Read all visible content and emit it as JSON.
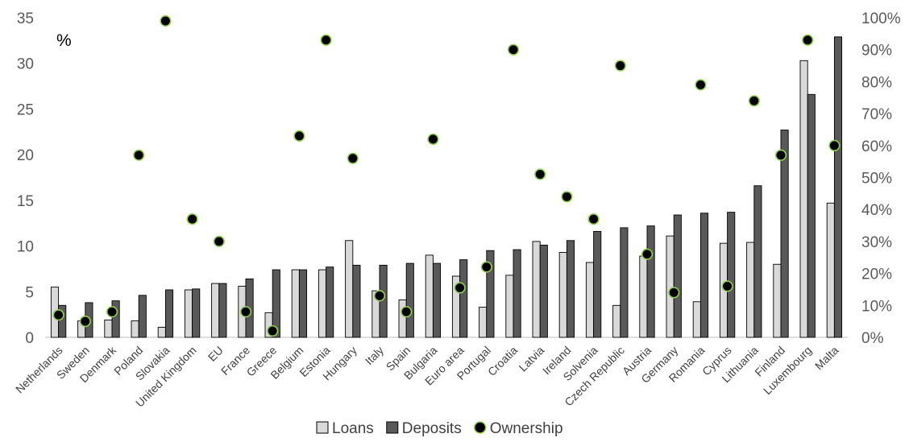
{
  "chart_data": {
    "type": "bar",
    "unit_label": "%",
    "categories": [
      "Netherlands",
      "Sweden",
      "Denmark",
      "Poland",
      "Slovakia",
      "United Kingdom",
      "EU",
      "France",
      "Greece",
      "Belgium",
      "Estonia",
      "Hungary",
      "Italy",
      "Spain",
      "Bulgaria",
      "Euro area",
      "Portugal",
      "Croatia",
      "Latvia",
      "Ireland",
      "Solvenia",
      "Czech Republic",
      "Austria",
      "Germany",
      "Romania",
      "Cyprus",
      "Lithuania",
      "Finland",
      "Luxembourg",
      "Malta"
    ],
    "series": [
      {
        "name": "Loans",
        "kind": "bar",
        "axis": "left",
        "color": "#d9d9d9",
        "values": [
          5.5,
          1.8,
          1.9,
          1.8,
          1.1,
          5.2,
          5.9,
          5.6,
          2.7,
          7.4,
          7.4,
          10.6,
          5.1,
          4.1,
          9.0,
          6.7,
          3.3,
          6.8,
          10.5,
          9.3,
          8.2,
          3.5,
          8.9,
          11.1,
          3.9,
          10.3,
          10.4,
          8.0,
          30.3,
          14.7
        ]
      },
      {
        "name": "Deposits",
        "kind": "bar",
        "axis": "left",
        "color": "#595959",
        "values": [
          3.5,
          3.8,
          4.0,
          4.6,
          5.2,
          5.3,
          5.9,
          6.4,
          7.4,
          7.4,
          7.7,
          7.9,
          7.9,
          8.1,
          8.1,
          8.5,
          9.5,
          9.6,
          10.1,
          10.6,
          11.6,
          12.0,
          12.2,
          13.4,
          13.6,
          13.7,
          16.6,
          22.7,
          26.6,
          32.9
        ]
      },
      {
        "name": "Ownership",
        "kind": "scatter",
        "axis": "right",
        "color": "#000000",
        "edge_color": "#92d050",
        "values": [
          7,
          5,
          8,
          57,
          99,
          37,
          30,
          8,
          2,
          63,
          93,
          56,
          13,
          8,
          62,
          15.5,
          22,
          90,
          51,
          44,
          37,
          85,
          26,
          14,
          79,
          16,
          74,
          57,
          93,
          60
        ]
      }
    ],
    "ylim_left": [
      0,
      35
    ],
    "yticks_left": [
      "0",
      "5",
      "10",
      "15",
      "20",
      "25",
      "30",
      "35"
    ],
    "ylim_right": [
      0,
      100
    ],
    "yticks_right": [
      "0%",
      "10%",
      "20%",
      "30%",
      "40%",
      "50%",
      "60%",
      "70%",
      "80%",
      "90%",
      "100%"
    ],
    "grid": false,
    "legend_position": "bottom-center"
  }
}
